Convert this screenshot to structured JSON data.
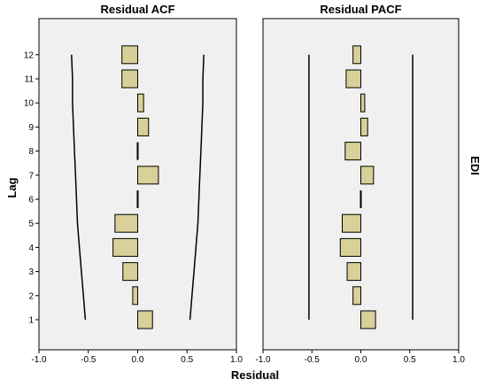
{
  "chart_data": {
    "type": "bar",
    "orientation": "horizontal",
    "xlabel": "Residual",
    "ylabel": "Lag",
    "strip_label": "EDI",
    "lags": [
      1,
      2,
      3,
      4,
      5,
      6,
      7,
      8,
      9,
      10,
      11,
      12
    ],
    "xlim": [
      -1.0,
      1.0
    ],
    "x_ticks": [
      "-1.0",
      "-0.5",
      "0.0",
      "0.5",
      "1.0"
    ],
    "panels": [
      {
        "title": "Residual ACF",
        "values": [
          0.15,
          -0.05,
          -0.15,
          -0.25,
          -0.23,
          0.0,
          0.21,
          0.0,
          0.11,
          0.06,
          -0.16,
          -0.16
        ],
        "upper_limit": [
          0.53,
          0.55,
          0.57,
          0.59,
          0.61,
          0.62,
          0.63,
          0.64,
          0.65,
          0.66,
          0.66,
          0.67
        ],
        "lower_limit": [
          -0.53,
          -0.55,
          -0.57,
          -0.59,
          -0.61,
          -0.62,
          -0.63,
          -0.64,
          -0.65,
          -0.66,
          -0.66,
          -0.67
        ]
      },
      {
        "title": "Residual PACF",
        "values": [
          0.15,
          -0.08,
          -0.14,
          -0.21,
          -0.19,
          0.0,
          0.13,
          -0.16,
          0.07,
          0.04,
          -0.15,
          -0.08
        ],
        "upper_limit": [
          0.53,
          0.53,
          0.53,
          0.53,
          0.53,
          0.53,
          0.53,
          0.53,
          0.53,
          0.53,
          0.53,
          0.53
        ],
        "lower_limit": [
          -0.53,
          -0.53,
          -0.53,
          -0.53,
          -0.53,
          -0.53,
          -0.53,
          -0.53,
          -0.53,
          -0.53,
          -0.53,
          -0.53
        ]
      }
    ],
    "colors": {
      "background": "#f0f0f0",
      "bar_fill": "#d9cf98",
      "bar_stroke": "#000000",
      "frame": "#000000"
    }
  }
}
